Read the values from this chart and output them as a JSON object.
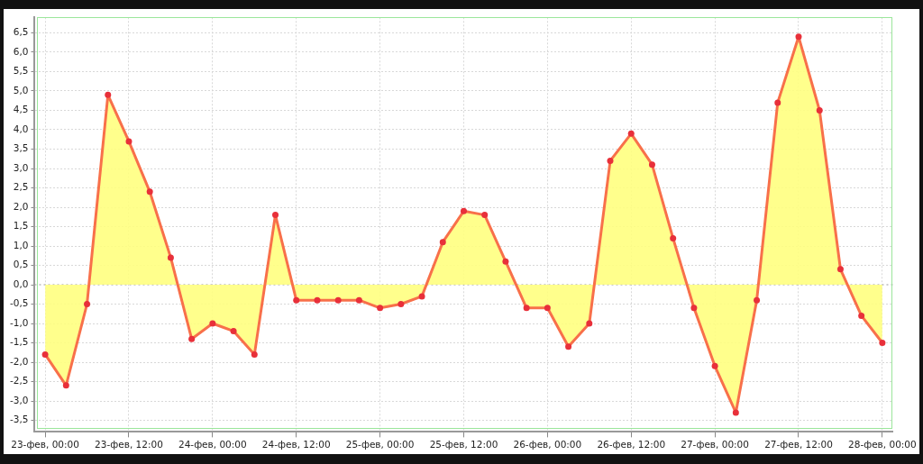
{
  "chart_data": {
    "type": "area",
    "categories": [
      "23-фев, 00:00",
      null,
      null,
      null,
      "23-фев, 12:00",
      null,
      null,
      null,
      "24-фев, 00:00",
      null,
      null,
      null,
      "24-фев, 12:00",
      null,
      null,
      null,
      "25-фев, 00:00",
      null,
      null,
      null,
      "25-фев, 12:00",
      null,
      null,
      null,
      "26-фев, 00:00",
      null,
      null,
      null,
      "26-фев, 12:00",
      null,
      null,
      null,
      "27-фев, 00:00",
      null,
      null,
      null,
      "27-фев, 12:00",
      null,
      null,
      null,
      "28-фев, 00:00"
    ],
    "series": [
      {
        "color": "#ffff80",
        "values": [
          -1.8,
          -2.6,
          -0.5,
          4.9,
          3.7,
          2.4,
          0.7,
          -1.4,
          -1.0,
          -1.2,
          -1.8,
          1.8,
          -0.4,
          -0.4,
          -0.4,
          -0.4,
          -0.6,
          -0.5,
          -0.3,
          1.1,
          1.9,
          1.8,
          0.6,
          -0.6,
          -0.6,
          -1.6,
          -1.0,
          3.2,
          3.9,
          3.1,
          1.2,
          -0.6,
          -2.1,
          -3.3,
          -0.4,
          4.7,
          6.4,
          4.5,
          0.4,
          -0.8,
          -1.5
        ]
      }
    ],
    "ylim": [
      -3.8,
      6.9
    ],
    "yticks": [
      {
        "value": -3.5,
        "label": "-3,5"
      },
      {
        "value": -3,
        "label": "-3,0"
      },
      {
        "value": -2.5,
        "label": "-2,5"
      },
      {
        "value": -2,
        "label": "-2,0"
      },
      {
        "value": -1.5,
        "label": "-1,5"
      },
      {
        "value": -1,
        "label": "-1,0"
      },
      {
        "value": -0.5,
        "label": "-0,5"
      },
      {
        "value": 0,
        "label": "0,0"
      },
      {
        "value": 0.5,
        "label": "0,5"
      },
      {
        "value": 1,
        "label": "1,0"
      },
      {
        "value": 1.5,
        "label": "1,5"
      },
      {
        "value": 2,
        "label": "2,0"
      },
      {
        "value": 2.5,
        "label": "2,5"
      },
      {
        "value": 3,
        "label": "3,0"
      },
      {
        "value": 3.5,
        "label": "3,5"
      },
      {
        "value": 4,
        "label": "4,0"
      },
      {
        "value": 4.5,
        "label": "4,5"
      },
      {
        "value": 5,
        "label": "5,0"
      },
      {
        "value": 5.5,
        "label": "5,5"
      },
      {
        "value": 6,
        "label": "6,0"
      },
      {
        "value": 6.5,
        "label": "6,5"
      }
    ],
    "ref_lines": [
      {
        "axis": "y",
        "value": 0,
        "color": "#999999",
        "line_style": "dotted"
      }
    ],
    "grid": true,
    "marker": "circle",
    "line_style": "solid"
  }
}
